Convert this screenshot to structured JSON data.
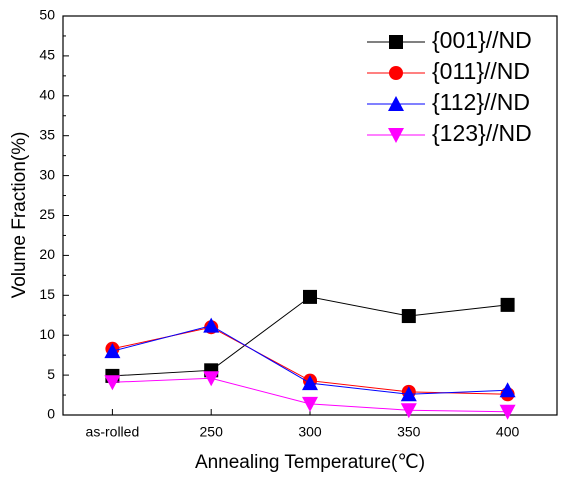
{
  "chart_data": {
    "type": "line",
    "xlabel": "Annealing Temperature(℃)",
    "ylabel": "Volume Fraction(%)",
    "categories": [
      "as-rolled",
      "250",
      "300",
      "350",
      "400"
    ],
    "series": [
      {
        "name": "{001}//ND",
        "color": "#000000",
        "marker": "square",
        "values": [
          4.9,
          5.6,
          14.8,
          12.4,
          13.8
        ]
      },
      {
        "name": "{011}//ND",
        "color": "#ff0000",
        "marker": "circle",
        "values": [
          8.3,
          11.0,
          4.3,
          2.9,
          2.6
        ]
      },
      {
        "name": "{112}//ND",
        "color": "#0000ff",
        "marker": "triangle-up",
        "values": [
          8.0,
          11.2,
          4.0,
          2.6,
          3.1
        ]
      },
      {
        "name": "{123}//ND",
        "color": "#ff00ff",
        "marker": "triangle-down",
        "values": [
          4.1,
          4.6,
          1.4,
          0.6,
          0.4
        ]
      }
    ],
    "ylim": [
      0,
      50
    ],
    "yticks": [
      0,
      5,
      10,
      15,
      20,
      25,
      30,
      35,
      40,
      45,
      50
    ],
    "legend": "upper right"
  }
}
